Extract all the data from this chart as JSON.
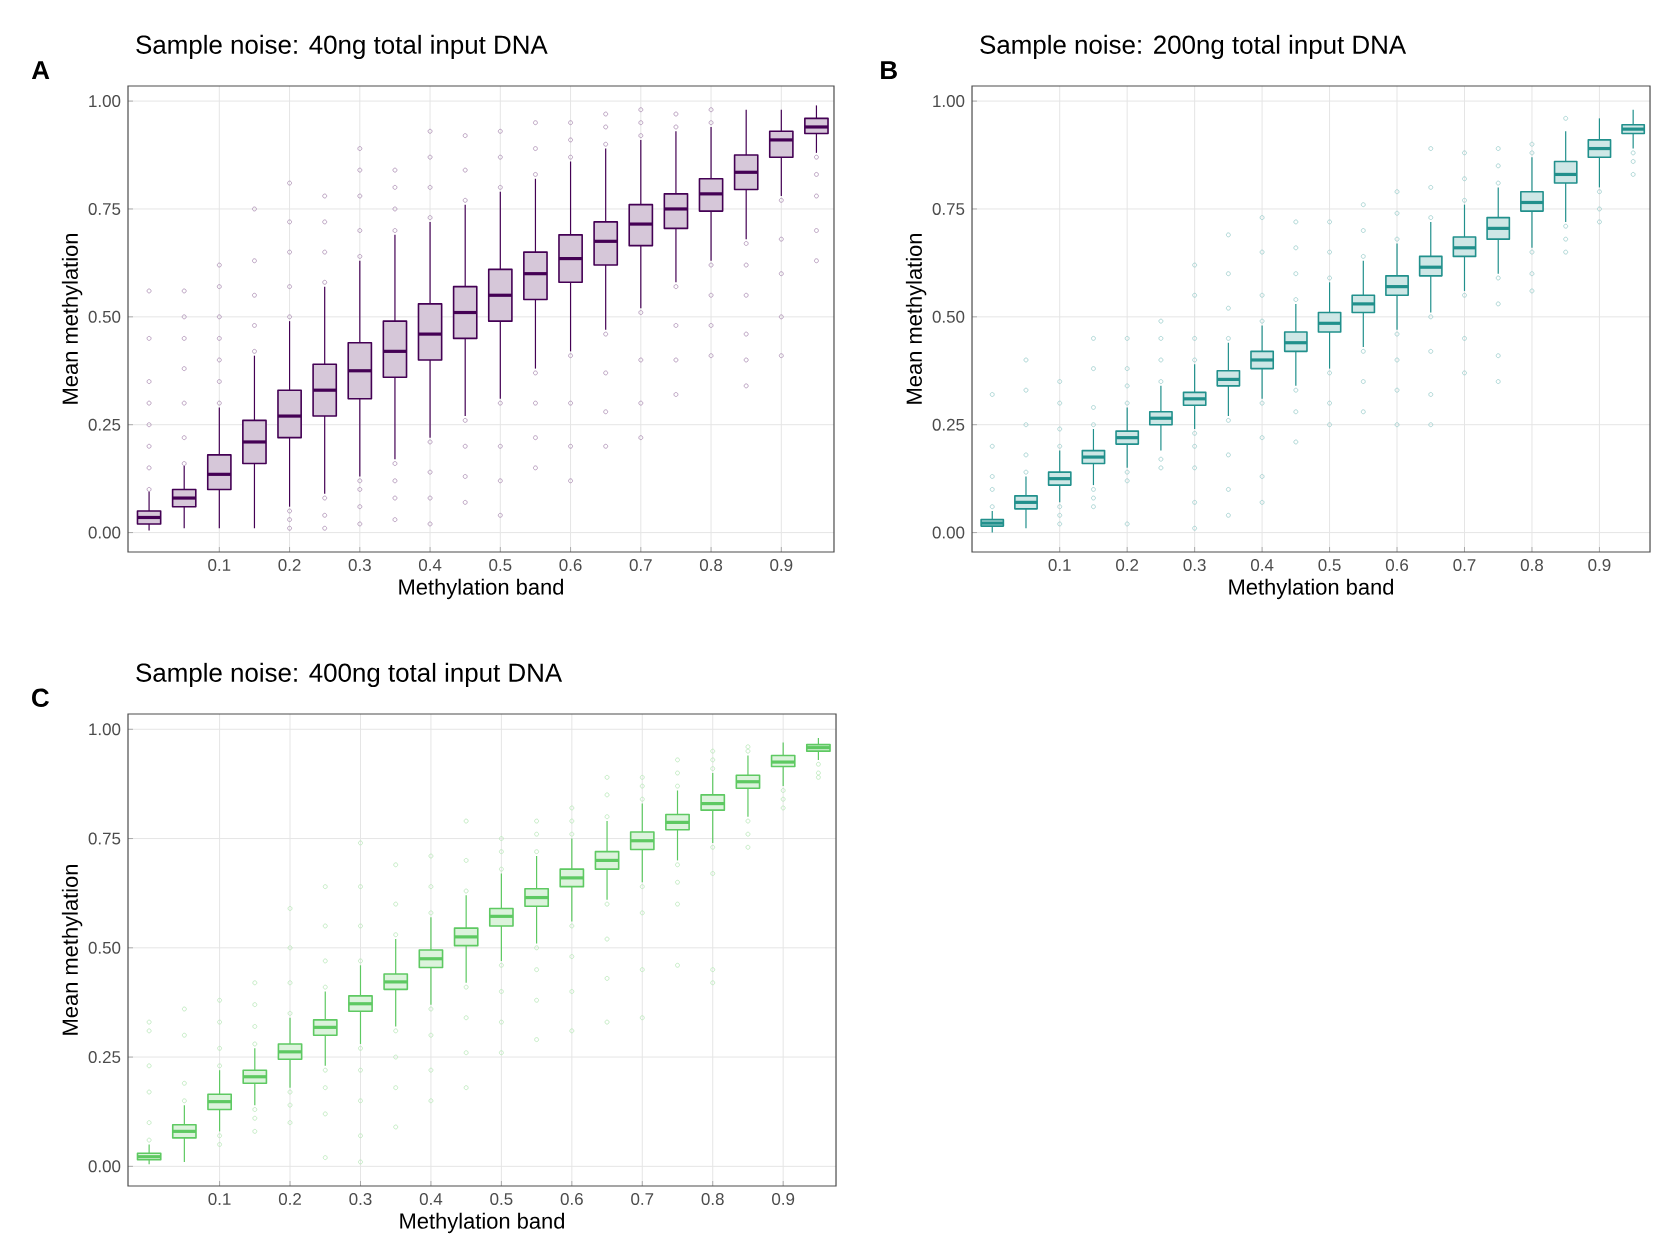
{
  "chart_data": [
    {
      "type": "box",
      "title": "Sample noise: 40ng total input DNA",
      "annotations": [
        "A"
      ],
      "xlabel": "Methylation band",
      "ylabel": "Mean methylation",
      "color": "#440154",
      "grid": true,
      "xlim": [
        -0.03,
        0.975
      ],
      "ylim": [
        -0.045,
        1.035
      ],
      "xticks": [
        0.1,
        0.2,
        0.3,
        0.4,
        0.5,
        0.6,
        0.7,
        0.8,
        0.9
      ],
      "yticks": [
        {
          "value": 0,
          "label": "0.00"
        },
        {
          "value": 0.25,
          "label": "0.25"
        },
        {
          "value": 0.5,
          "label": "0.50"
        },
        {
          "value": 0.75,
          "label": "0.75"
        },
        {
          "value": 1,
          "label": "1.00"
        }
      ],
      "x": [
        0,
        0.05,
        0.1,
        0.15,
        0.2,
        0.25,
        0.3,
        0.35,
        0.4,
        0.45,
        0.5,
        0.55,
        0.6,
        0.65,
        0.7,
        0.75,
        0.8,
        0.85,
        0.9,
        0.95
      ],
      "boxes": [
        {
          "low": 0.005,
          "q1": 0.02,
          "median": 0.035,
          "q3": 0.05,
          "high": 0.095,
          "outliers": [
            0.1,
            0.15,
            0.2,
            0.25,
            0.3,
            0.35,
            0.45,
            0.56
          ]
        },
        {
          "low": 0.01,
          "q1": 0.06,
          "median": 0.08,
          "q3": 0.1,
          "high": 0.155,
          "outliers": [
            0.16,
            0.22,
            0.3,
            0.38,
            0.45,
            0.5,
            0.56
          ]
        },
        {
          "low": 0.01,
          "q1": 0.1,
          "median": 0.135,
          "q3": 0.18,
          "high": 0.29,
          "outliers": [
            0.3,
            0.35,
            0.4,
            0.45,
            0.5,
            0.57,
            0.62
          ]
        },
        {
          "low": 0.01,
          "q1": 0.16,
          "median": 0.21,
          "q3": 0.26,
          "high": 0.41,
          "outliers": [
            0.42,
            0.48,
            0.55,
            0.63,
            0.75
          ]
        },
        {
          "low": 0.06,
          "q1": 0.22,
          "median": 0.27,
          "q3": 0.33,
          "high": 0.49,
          "outliers": [
            0.01,
            0.03,
            0.05,
            0.5,
            0.57,
            0.65,
            0.72,
            0.81
          ]
        },
        {
          "low": 0.09,
          "q1": 0.27,
          "median": 0.33,
          "q3": 0.39,
          "high": 0.57,
          "outliers": [
            0.01,
            0.04,
            0.08,
            0.58,
            0.65,
            0.72,
            0.78
          ]
        },
        {
          "low": 0.13,
          "q1": 0.31,
          "median": 0.375,
          "q3": 0.44,
          "high": 0.63,
          "outliers": [
            0.02,
            0.06,
            0.1,
            0.12,
            0.64,
            0.7,
            0.78,
            0.84,
            0.89
          ]
        },
        {
          "low": 0.17,
          "q1": 0.36,
          "median": 0.42,
          "q3": 0.49,
          "high": 0.69,
          "outliers": [
            0.03,
            0.08,
            0.12,
            0.16,
            0.7,
            0.75,
            0.8,
            0.84
          ]
        },
        {
          "low": 0.22,
          "q1": 0.4,
          "median": 0.46,
          "q3": 0.53,
          "high": 0.72,
          "outliers": [
            0.02,
            0.08,
            0.14,
            0.21,
            0.73,
            0.8,
            0.87,
            0.93
          ]
        },
        {
          "low": 0.27,
          "q1": 0.45,
          "median": 0.51,
          "q3": 0.57,
          "high": 0.76,
          "outliers": [
            0.07,
            0.13,
            0.2,
            0.26,
            0.77,
            0.84,
            0.92
          ]
        },
        {
          "low": 0.31,
          "q1": 0.49,
          "median": 0.55,
          "q3": 0.61,
          "high": 0.79,
          "outliers": [
            0.04,
            0.12,
            0.2,
            0.3,
            0.8,
            0.87,
            0.93
          ]
        },
        {
          "low": 0.38,
          "q1": 0.54,
          "median": 0.6,
          "q3": 0.65,
          "high": 0.82,
          "outliers": [
            0.15,
            0.22,
            0.3,
            0.37,
            0.83,
            0.89,
            0.95
          ]
        },
        {
          "low": 0.42,
          "q1": 0.58,
          "median": 0.635,
          "q3": 0.69,
          "high": 0.86,
          "outliers": [
            0.12,
            0.2,
            0.3,
            0.41,
            0.87,
            0.91,
            0.95
          ]
        },
        {
          "low": 0.47,
          "q1": 0.62,
          "median": 0.675,
          "q3": 0.72,
          "high": 0.89,
          "outliers": [
            0.2,
            0.28,
            0.37,
            0.46,
            0.9,
            0.94,
            0.97
          ]
        },
        {
          "low": 0.52,
          "q1": 0.665,
          "median": 0.715,
          "q3": 0.76,
          "high": 0.91,
          "outliers": [
            0.22,
            0.3,
            0.4,
            0.51,
            0.92,
            0.95,
            0.98
          ]
        },
        {
          "low": 0.58,
          "q1": 0.705,
          "median": 0.75,
          "q3": 0.785,
          "high": 0.93,
          "outliers": [
            0.32,
            0.4,
            0.48,
            0.57,
            0.94,
            0.97
          ]
        },
        {
          "low": 0.63,
          "q1": 0.745,
          "median": 0.785,
          "q3": 0.82,
          "high": 0.94,
          "outliers": [
            0.41,
            0.48,
            0.55,
            0.62,
            0.95,
            0.98
          ]
        },
        {
          "low": 0.68,
          "q1": 0.795,
          "median": 0.835,
          "q3": 0.875,
          "high": 0.98,
          "outliers": [
            0.34,
            0.4,
            0.46,
            0.55,
            0.62,
            0.67
          ]
        },
        {
          "low": 0.78,
          "q1": 0.87,
          "median": 0.91,
          "q3": 0.93,
          "high": 0.98,
          "outliers": [
            0.41,
            0.5,
            0.6,
            0.68,
            0.77
          ]
        },
        {
          "low": 0.88,
          "q1": 0.925,
          "median": 0.94,
          "q3": 0.96,
          "high": 0.99,
          "outliers": [
            0.63,
            0.7,
            0.78,
            0.83,
            0.87
          ]
        }
      ]
    },
    {
      "type": "box",
      "title": "Sample noise: 200ng total input DNA",
      "annotations": [
        "B"
      ],
      "xlabel": "Methylation band",
      "ylabel": "Mean methylation",
      "color": "#21908c",
      "grid": true,
      "xlim": [
        -0.03,
        0.975
      ],
      "ylim": [
        -0.045,
        1.035
      ],
      "xticks": [
        0.1,
        0.2,
        0.3,
        0.4,
        0.5,
        0.6,
        0.7,
        0.8,
        0.9
      ],
      "yticks": [
        {
          "value": 0,
          "label": "0.00"
        },
        {
          "value": 0.25,
          "label": "0.25"
        },
        {
          "value": 0.5,
          "label": "0.50"
        },
        {
          "value": 0.75,
          "label": "0.75"
        },
        {
          "value": 1,
          "label": "1.00"
        }
      ],
      "x": [
        0,
        0.05,
        0.1,
        0.15,
        0.2,
        0.25,
        0.3,
        0.35,
        0.4,
        0.45,
        0.5,
        0.55,
        0.6,
        0.65,
        0.7,
        0.75,
        0.8,
        0.85,
        0.9,
        0.95
      ],
      "boxes": [
        {
          "low": 0.0,
          "q1": 0.015,
          "median": 0.022,
          "q3": 0.03,
          "high": 0.05,
          "outliers": [
            0.06,
            0.1,
            0.13,
            0.2,
            0.32
          ]
        },
        {
          "low": 0.01,
          "q1": 0.055,
          "median": 0.07,
          "q3": 0.085,
          "high": 0.13,
          "outliers": [
            0.14,
            0.18,
            0.25,
            0.33,
            0.4
          ]
        },
        {
          "low": 0.07,
          "q1": 0.11,
          "median": 0.125,
          "q3": 0.14,
          "high": 0.19,
          "outliers": [
            0.02,
            0.04,
            0.06,
            0.2,
            0.24,
            0.3,
            0.35
          ]
        },
        {
          "low": 0.11,
          "q1": 0.16,
          "median": 0.175,
          "q3": 0.19,
          "high": 0.24,
          "outliers": [
            0.06,
            0.08,
            0.1,
            0.25,
            0.29,
            0.38,
            0.45
          ]
        },
        {
          "low": 0.15,
          "q1": 0.205,
          "median": 0.22,
          "q3": 0.235,
          "high": 0.29,
          "outliers": [
            0.02,
            0.12,
            0.14,
            0.3,
            0.34,
            0.38,
            0.45
          ]
        },
        {
          "low": 0.19,
          "q1": 0.25,
          "median": 0.265,
          "q3": 0.28,
          "high": 0.34,
          "outliers": [
            0.15,
            0.17,
            0.35,
            0.4,
            0.45,
            0.49
          ]
        },
        {
          "low": 0.24,
          "q1": 0.295,
          "median": 0.31,
          "q3": 0.325,
          "high": 0.39,
          "outliers": [
            0.01,
            0.07,
            0.15,
            0.2,
            0.23,
            0.4,
            0.45,
            0.55,
            0.62
          ]
        },
        {
          "low": 0.27,
          "q1": 0.34,
          "median": 0.355,
          "q3": 0.375,
          "high": 0.44,
          "outliers": [
            0.04,
            0.1,
            0.18,
            0.26,
            0.45,
            0.52,
            0.6,
            0.69
          ]
        },
        {
          "low": 0.31,
          "q1": 0.38,
          "median": 0.4,
          "q3": 0.42,
          "high": 0.48,
          "outliers": [
            0.07,
            0.13,
            0.22,
            0.3,
            0.49,
            0.55,
            0.65,
            0.73
          ]
        },
        {
          "low": 0.34,
          "q1": 0.42,
          "median": 0.44,
          "q3": 0.465,
          "high": 0.53,
          "outliers": [
            0.21,
            0.28,
            0.33,
            0.54,
            0.6,
            0.66,
            0.72
          ]
        },
        {
          "low": 0.38,
          "q1": 0.465,
          "median": 0.485,
          "q3": 0.51,
          "high": 0.58,
          "outliers": [
            0.25,
            0.3,
            0.37,
            0.59,
            0.65,
            0.72
          ]
        },
        {
          "low": 0.43,
          "q1": 0.51,
          "median": 0.53,
          "q3": 0.55,
          "high": 0.63,
          "outliers": [
            0.28,
            0.35,
            0.42,
            0.64,
            0.7,
            0.76
          ]
        },
        {
          "low": 0.47,
          "q1": 0.55,
          "median": 0.57,
          "q3": 0.595,
          "high": 0.67,
          "outliers": [
            0.25,
            0.33,
            0.4,
            0.46,
            0.68,
            0.74,
            0.79
          ]
        },
        {
          "low": 0.51,
          "q1": 0.595,
          "median": 0.615,
          "q3": 0.64,
          "high": 0.72,
          "outliers": [
            0.25,
            0.32,
            0.42,
            0.5,
            0.73,
            0.8,
            0.89
          ]
        },
        {
          "low": 0.56,
          "q1": 0.64,
          "median": 0.66,
          "q3": 0.685,
          "high": 0.76,
          "outliers": [
            0.37,
            0.45,
            0.55,
            0.77,
            0.82,
            0.88
          ]
        },
        {
          "low": 0.6,
          "q1": 0.68,
          "median": 0.705,
          "q3": 0.73,
          "high": 0.8,
          "outliers": [
            0.35,
            0.41,
            0.53,
            0.59,
            0.81,
            0.85,
            0.89
          ]
        },
        {
          "low": 0.66,
          "q1": 0.745,
          "median": 0.765,
          "q3": 0.79,
          "high": 0.87,
          "outliers": [
            0.56,
            0.6,
            0.65,
            0.88,
            0.9
          ]
        },
        {
          "low": 0.72,
          "q1": 0.81,
          "median": 0.83,
          "q3": 0.86,
          "high": 0.93,
          "outliers": [
            0.65,
            0.68,
            0.71,
            0.96
          ]
        },
        {
          "low": 0.8,
          "q1": 0.87,
          "median": 0.89,
          "q3": 0.91,
          "high": 0.96,
          "outliers": [
            0.72,
            0.75,
            0.79
          ]
        },
        {
          "low": 0.89,
          "q1": 0.925,
          "median": 0.935,
          "q3": 0.945,
          "high": 0.98,
          "outliers": [
            0.83,
            0.86,
            0.88
          ]
        }
      ]
    },
    {
      "type": "box",
      "title": "Sample noise: 400ng total input DNA",
      "annotations": [
        "C"
      ],
      "xlabel": "Methylation band",
      "ylabel": "Mean methylation",
      "color": "#5ec962",
      "grid": true,
      "xlim": [
        -0.03,
        0.975
      ],
      "ylim": [
        -0.045,
        1.035
      ],
      "xticks": [
        0.1,
        0.2,
        0.3,
        0.4,
        0.5,
        0.6,
        0.7,
        0.8,
        0.9
      ],
      "yticks": [
        {
          "value": 0,
          "label": "0.00"
        },
        {
          "value": 0.25,
          "label": "0.25"
        },
        {
          "value": 0.5,
          "label": "0.50"
        },
        {
          "value": 0.75,
          "label": "0.75"
        },
        {
          "value": 1,
          "label": "1.00"
        }
      ],
      "x": [
        0,
        0.05,
        0.1,
        0.15,
        0.2,
        0.25,
        0.3,
        0.35,
        0.4,
        0.45,
        0.5,
        0.55,
        0.6,
        0.65,
        0.7,
        0.75,
        0.8,
        0.85,
        0.9,
        0.95
      ],
      "boxes": [
        {
          "low": 0.005,
          "q1": 0.015,
          "median": 0.022,
          "q3": 0.03,
          "high": 0.05,
          "outliers": [
            0.06,
            0.1,
            0.17,
            0.23,
            0.31,
            0.33
          ]
        },
        {
          "low": 0.01,
          "q1": 0.065,
          "median": 0.08,
          "q3": 0.095,
          "high": 0.14,
          "outliers": [
            0.15,
            0.19,
            0.3,
            0.36
          ]
        },
        {
          "low": 0.08,
          "q1": 0.13,
          "median": 0.148,
          "q3": 0.165,
          "high": 0.22,
          "outliers": [
            0.05,
            0.07,
            0.23,
            0.27,
            0.33,
            0.38
          ]
        },
        {
          "low": 0.14,
          "q1": 0.19,
          "median": 0.205,
          "q3": 0.22,
          "high": 0.27,
          "outliers": [
            0.08,
            0.11,
            0.13,
            0.28,
            0.32,
            0.37,
            0.42
          ]
        },
        {
          "low": 0.18,
          "q1": 0.245,
          "median": 0.262,
          "q3": 0.28,
          "high": 0.34,
          "outliers": [
            0.1,
            0.14,
            0.17,
            0.35,
            0.42,
            0.5,
            0.59
          ]
        },
        {
          "low": 0.23,
          "q1": 0.3,
          "median": 0.318,
          "q3": 0.335,
          "high": 0.4,
          "outliers": [
            0.02,
            0.12,
            0.18,
            0.22,
            0.41,
            0.47,
            0.55,
            0.64
          ]
        },
        {
          "low": 0.28,
          "q1": 0.355,
          "median": 0.372,
          "q3": 0.39,
          "high": 0.46,
          "outliers": [
            0.01,
            0.07,
            0.15,
            0.22,
            0.27,
            0.47,
            0.55,
            0.64,
            0.74
          ]
        },
        {
          "low": 0.32,
          "q1": 0.405,
          "median": 0.422,
          "q3": 0.44,
          "high": 0.52,
          "outliers": [
            0.09,
            0.18,
            0.25,
            0.31,
            0.53,
            0.6,
            0.69
          ]
        },
        {
          "low": 0.37,
          "q1": 0.455,
          "median": 0.475,
          "q3": 0.495,
          "high": 0.57,
          "outliers": [
            0.15,
            0.22,
            0.3,
            0.36,
            0.58,
            0.64,
            0.71
          ]
        },
        {
          "low": 0.42,
          "q1": 0.505,
          "median": 0.525,
          "q3": 0.545,
          "high": 0.62,
          "outliers": [
            0.18,
            0.26,
            0.34,
            0.41,
            0.63,
            0.7,
            0.79
          ]
        },
        {
          "low": 0.47,
          "q1": 0.55,
          "median": 0.572,
          "q3": 0.59,
          "high": 0.67,
          "outliers": [
            0.26,
            0.33,
            0.4,
            0.46,
            0.68,
            0.72,
            0.75
          ]
        },
        {
          "low": 0.51,
          "q1": 0.595,
          "median": 0.615,
          "q3": 0.635,
          "high": 0.71,
          "outliers": [
            0.29,
            0.38,
            0.45,
            0.5,
            0.72,
            0.76,
            0.79
          ]
        },
        {
          "low": 0.56,
          "q1": 0.64,
          "median": 0.66,
          "q3": 0.68,
          "high": 0.75,
          "outliers": [
            0.31,
            0.4,
            0.48,
            0.55,
            0.76,
            0.79,
            0.82
          ]
        },
        {
          "low": 0.61,
          "q1": 0.68,
          "median": 0.7,
          "q3": 0.72,
          "high": 0.79,
          "outliers": [
            0.33,
            0.43,
            0.52,
            0.6,
            0.8,
            0.85,
            0.89
          ]
        },
        {
          "low": 0.65,
          "q1": 0.725,
          "median": 0.745,
          "q3": 0.765,
          "high": 0.83,
          "outliers": [
            0.34,
            0.45,
            0.58,
            0.64,
            0.84,
            0.87,
            0.89
          ]
        },
        {
          "low": 0.7,
          "q1": 0.77,
          "median": 0.787,
          "q3": 0.805,
          "high": 0.86,
          "outliers": [
            0.46,
            0.6,
            0.65,
            0.69,
            0.87,
            0.9,
            0.93
          ]
        },
        {
          "low": 0.74,
          "q1": 0.815,
          "median": 0.83,
          "q3": 0.85,
          "high": 0.9,
          "outliers": [
            0.42,
            0.45,
            0.67,
            0.73,
            0.91,
            0.93,
            0.95
          ]
        },
        {
          "low": 0.8,
          "q1": 0.865,
          "median": 0.88,
          "q3": 0.895,
          "high": 0.94,
          "outliers": [
            0.73,
            0.76,
            0.79,
            0.95,
            0.96
          ]
        },
        {
          "low": 0.87,
          "q1": 0.915,
          "median": 0.925,
          "q3": 0.94,
          "high": 0.97,
          "outliers": [
            0.82,
            0.84,
            0.86
          ]
        },
        {
          "low": 0.93,
          "q1": 0.95,
          "median": 0.958,
          "q3": 0.965,
          "high": 0.98,
          "outliers": [
            0.89,
            0.9,
            0.92
          ]
        }
      ]
    }
  ]
}
